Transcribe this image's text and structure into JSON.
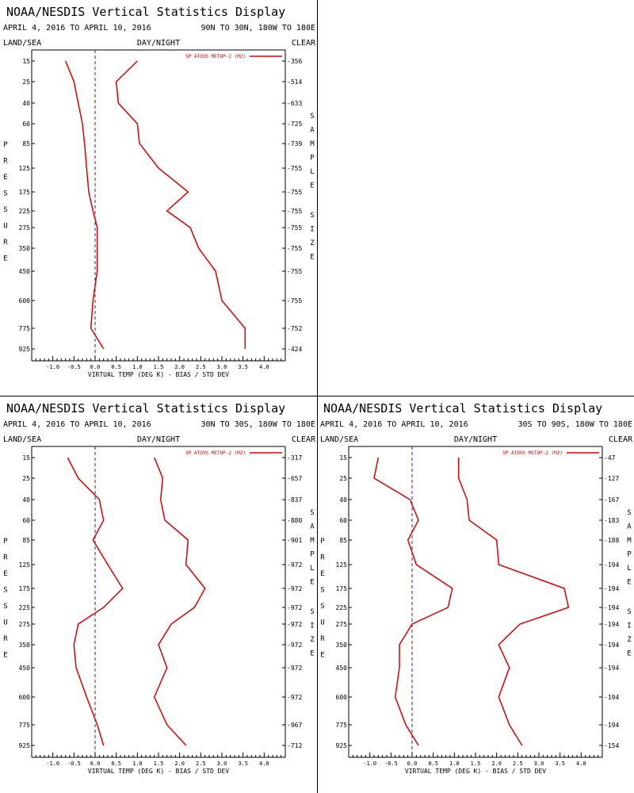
{
  "chart_data": [
    {
      "type": "line",
      "title": "NOAA/NESDIS Vertical Statistics Display",
      "subtitle_left": "APRIL 4, 2016 TO APRIL 10, 2016",
      "subtitle_right": "90N TO 30N, 180W TO 180E",
      "header_left": "LAND/SEA",
      "header_center": "DAY/NIGHT",
      "header_right": "CLEAR",
      "xlabel": "VIRTUAL TEMP (DEG K) - BIAS / STD DEV",
      "ylabel": "PRESSURE",
      "right_label": "SAMPLE SIZE",
      "legend": "SP ATOVS METOP-2 (M2)",
      "legend_position": "top-right",
      "xlim": [
        -1.5,
        4.5
      ],
      "x_ticks": [
        "-1.0",
        "-0.5",
        "0.0",
        "0.5",
        "1.0",
        "1.5",
        "2.0",
        "2.5",
        "3.0",
        "3.5",
        "4.0"
      ],
      "pressure_levels": [
        15,
        25,
        40,
        60,
        85,
        125,
        175,
        225,
        275,
        350,
        450,
        600,
        775,
        925
      ],
      "sample_sizes": [
        356,
        514,
        633,
        725,
        739,
        755,
        755,
        755,
        755,
        755,
        755,
        755,
        752,
        424
      ],
      "series": [
        {
          "name": "BIAS",
          "values": [
            -0.7,
            -0.5,
            -0.4,
            -0.3,
            -0.25,
            -0.2,
            -0.15,
            -0.05,
            0.05,
            0.05,
            0.05,
            -0.05,
            -0.1,
            0.2
          ]
        },
        {
          "name": "STD DEV",
          "values": [
            1.0,
            0.5,
            0.55,
            1.0,
            1.05,
            1.5,
            2.2,
            1.7,
            2.25,
            2.45,
            2.85,
            3.0,
            3.55,
            3.55
          ]
        }
      ]
    },
    {
      "type": "line",
      "title": "NOAA/NESDIS Vertical Statistics Display",
      "subtitle_left": "APRIL 4, 2016 TO APRIL 10, 2016",
      "subtitle_right": "30N TO 30S, 180W TO 180E",
      "header_left": "LAND/SEA",
      "header_center": "DAY/NIGHT",
      "header_right": "CLEAR",
      "xlabel": "VIRTUAL TEMP (DEG K) - BIAS / STD DEV",
      "ylabel": "PRESSURE",
      "right_label": "SAMPLE SIZE",
      "legend": "SP ATOVS METOP-2 (M2)",
      "legend_position": "top-right",
      "xlim": [
        -1.5,
        4.5
      ],
      "x_ticks": [
        "-1.0",
        "-0.5",
        "0.0",
        "0.5",
        "1.0",
        "1.5",
        "2.0",
        "2.5",
        "3.0",
        "3.5",
        "4.0"
      ],
      "pressure_levels": [
        15,
        25,
        40,
        60,
        85,
        125,
        175,
        225,
        275,
        350,
        450,
        600,
        775,
        925
      ],
      "sample_sizes": [
        317,
        657,
        837,
        880,
        901,
        972,
        972,
        972,
        972,
        972,
        972,
        972,
        967,
        712
      ],
      "series": [
        {
          "name": "BIAS",
          "values": [
            -0.65,
            -0.4,
            0.1,
            0.2,
            -0.05,
            0.3,
            0.65,
            0.2,
            -0.4,
            -0.5,
            -0.45,
            -0.2,
            0.05,
            0.2
          ]
        },
        {
          "name": "STD DEV",
          "values": [
            1.4,
            1.6,
            1.55,
            1.65,
            2.2,
            2.15,
            2.6,
            2.35,
            1.8,
            1.5,
            1.7,
            1.4,
            1.7,
            2.15
          ]
        }
      ]
    },
    {
      "type": "line",
      "title": "NOAA/NESDIS Vertical Statistics Display",
      "subtitle_left": "APRIL 4, 2016 TO APRIL 10, 2016",
      "subtitle_right": "30S TO 90S, 180W TO 180E",
      "header_left": "LAND/SEA",
      "header_center": "DAY/NIGHT",
      "header_right": "CLEAR",
      "xlabel": "VIRTUAL TEMP (DEG K) - BIAS / STD DEV",
      "ylabel": "PRESSURE",
      "right_label": "SAMPLE SIZE",
      "legend": "SP ATOVS METOP-2 (M2)",
      "legend_position": "top-right",
      "xlim": [
        -1.5,
        4.5
      ],
      "x_ticks": [
        "-1.0",
        "-0.5",
        "0.0",
        "0.5",
        "1.0",
        "1.5",
        "2.0",
        "2.5",
        "3.0",
        "3.5",
        "4.0"
      ],
      "pressure_levels": [
        15,
        25,
        40,
        60,
        85,
        125,
        175,
        225,
        275,
        350,
        450,
        600,
        775,
        925
      ],
      "sample_sizes": [
        47,
        127,
        167,
        183,
        188,
        194,
        194,
        194,
        194,
        194,
        194,
        194,
        194,
        154
      ],
      "series": [
        {
          "name": "BIAS",
          "values": [
            -0.8,
            -0.9,
            -0.05,
            0.15,
            -0.1,
            0.1,
            0.95,
            0.85,
            0.0,
            -0.3,
            -0.3,
            -0.4,
            -0.15,
            0.15
          ]
        },
        {
          "name": "STD DEV",
          "values": [
            1.1,
            1.1,
            1.3,
            1.35,
            2.0,
            2.05,
            3.6,
            3.7,
            2.55,
            2.05,
            2.3,
            2.05,
            2.3,
            2.6
          ]
        }
      ]
    }
  ],
  "style": {
    "line_color": "#dd0000",
    "zero_line_color": "#2222aa",
    "text_color": "#000000"
  }
}
